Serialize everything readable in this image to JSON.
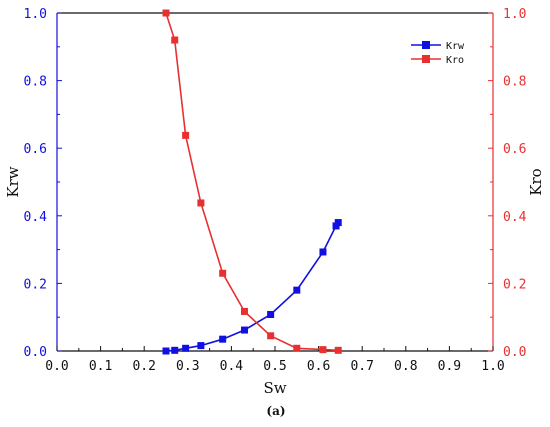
{
  "chart_data": {
    "type": "line",
    "caption": "(a)",
    "xlabel": "Sw",
    "ylabel_left": "Krw",
    "ylabel_right": "Kro",
    "xlim": [
      0.0,
      1.0
    ],
    "ylim_left": [
      0.0,
      1.0
    ],
    "ylim_right": [
      0.0,
      1.0
    ],
    "x_ticks": [
      "0.0",
      "0.1",
      "0.2",
      "0.3",
      "0.4",
      "0.5",
      "0.6",
      "0.7",
      "0.8",
      "0.9",
      "1.0"
    ],
    "y_ticks_left": [
      "0.0",
      "0.2",
      "0.4",
      "0.6",
      "0.8",
      "1.0"
    ],
    "y_ticks_right": [
      "0.0",
      "0.2",
      "0.4",
      "0.6",
      "0.8",
      "1.0"
    ],
    "grid": false,
    "legend_position": "top-right",
    "colors": {
      "krw": "#1010e0",
      "kro": "#e83030",
      "axis": "#111111"
    },
    "series": [
      {
        "name": "Krw",
        "axis": "left",
        "color": "#1010e0",
        "marker": "square",
        "x": [
          0.25,
          0.27,
          0.295,
          0.33,
          0.38,
          0.43,
          0.49,
          0.55,
          0.61,
          0.64,
          0.645
        ],
        "y": [
          0.0,
          0.002,
          0.008,
          0.016,
          0.035,
          0.062,
          0.108,
          0.18,
          0.293,
          0.37,
          0.38
        ]
      },
      {
        "name": "Kro",
        "axis": "right",
        "color": "#e83030",
        "marker": "square",
        "x": [
          0.25,
          0.27,
          0.295,
          0.33,
          0.38,
          0.43,
          0.49,
          0.55,
          0.61,
          0.645
        ],
        "y": [
          1.0,
          0.92,
          0.638,
          0.438,
          0.23,
          0.117,
          0.045,
          0.008,
          0.004,
          0.002
        ]
      }
    ]
  }
}
